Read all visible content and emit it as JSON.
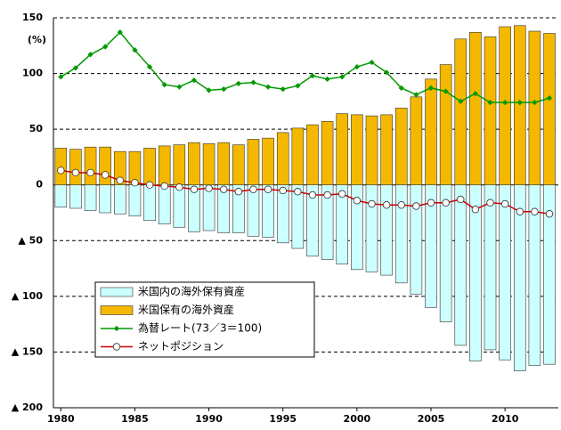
{
  "chart_data": {
    "type": "combo",
    "annotation": "(%)",
    "x": [
      1980,
      1981,
      1982,
      1983,
      1984,
      1985,
      1986,
      1987,
      1988,
      1989,
      1990,
      1991,
      1992,
      1993,
      1994,
      1995,
      1996,
      1997,
      1998,
      1999,
      2000,
      2001,
      2002,
      2003,
      2004,
      2005,
      2006,
      2007,
      2008,
      2009,
      2010,
      2011,
      2012,
      2013
    ],
    "xlim": [
      1979.5,
      2013.6
    ],
    "xticks": [
      1980,
      1985,
      1990,
      1995,
      2000,
      2005,
      2010
    ],
    "ylim": [
      -200,
      150
    ],
    "yticks": [
      150,
      100,
      50,
      0,
      {
        "value": -50,
        "label": "▲ 50"
      },
      {
        "value": -100,
        "label": "▲ 100"
      },
      {
        "value": -150,
        "label": "▲ 150"
      },
      {
        "value": -200,
        "label": "▲ 200"
      }
    ],
    "grid": true,
    "legend": "lower left",
    "series": [
      {
        "name": "米国内の海外保有資産",
        "type": "bar",
        "color": "#ccffff",
        "values": [
          -20,
          -21,
          -23,
          -25,
          -26,
          -28,
          -32,
          -35,
          -38,
          -42,
          -41,
          -43,
          -43,
          -46,
          -47,
          -52,
          -57,
          -64,
          -67,
          -71,
          -76,
          -78,
          -81,
          -88,
          -98,
          -110,
          -123,
          -144,
          -158,
          -148,
          -157,
          -167,
          -162,
          -161
        ]
      },
      {
        "name": "米国保有の海外資産",
        "type": "bar",
        "color": "#f5b800",
        "values": [
          33,
          32,
          34,
          34,
          30,
          30,
          33,
          35,
          36,
          38,
          37,
          38,
          36,
          41,
          42,
          47,
          51,
          54,
          57,
          64,
          63,
          62,
          63,
          69,
          79,
          95,
          108,
          131,
          137,
          133,
          142,
          143,
          138,
          136
        ]
      },
      {
        "name": "為替レート(73／3＝100)",
        "type": "line",
        "color": "#009900",
        "values": [
          97,
          105,
          117,
          124,
          137,
          121,
          106,
          90,
          88,
          94,
          85,
          86,
          91,
          92,
          88,
          86,
          89,
          98,
          95,
          97,
          106,
          110,
          101,
          87,
          81,
          87,
          84,
          75,
          82,
          74,
          74,
          74,
          74,
          78
        ]
      },
      {
        "name": "ネットポジション",
        "type": "line",
        "color": "#cc0000",
        "values": [
          13,
          11,
          11,
          9,
          4,
          2,
          0,
          -1,
          -2,
          -4,
          -3,
          -4,
          -6,
          -4,
          -4,
          -5,
          -6,
          -9,
          -9,
          -8,
          -14,
          -17,
          -18,
          -18,
          -19,
          -16,
          -16,
          -13,
          -22,
          -16,
          -17,
          -24,
          -24,
          -26
        ]
      }
    ]
  }
}
